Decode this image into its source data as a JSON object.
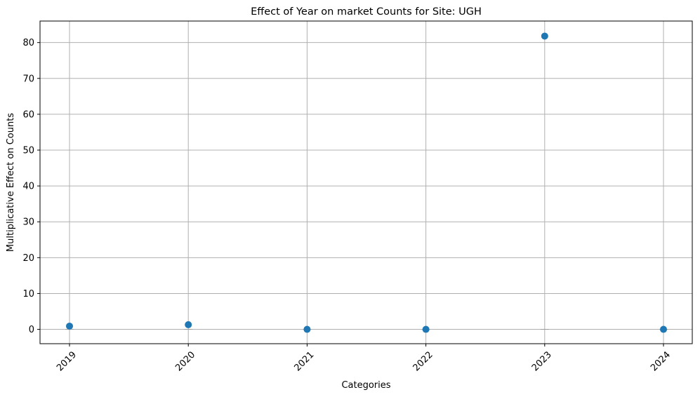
{
  "chart_data": {
    "type": "scatter",
    "title": "Effect of Year on market Counts for Site: UGH",
    "xlabel": "Categories",
    "ylabel": "Multiplicative Effect on Counts",
    "categories": [
      "2019",
      "2020",
      "2021",
      "2022",
      "2023",
      "2024"
    ],
    "series": [
      {
        "values": [
          0.9,
          1.3,
          0.0,
          0.0,
          81.8,
          0.0
        ]
      }
    ],
    "ylim": [
      -4,
      86
    ],
    "y_ticks": [
      0,
      10,
      20,
      30,
      40,
      50,
      60,
      70,
      80
    ],
    "x_tick_rotation": "45 degrees",
    "grid": true,
    "point_color": "#1f77b4",
    "grid_color": "#b0b0b0"
  }
}
